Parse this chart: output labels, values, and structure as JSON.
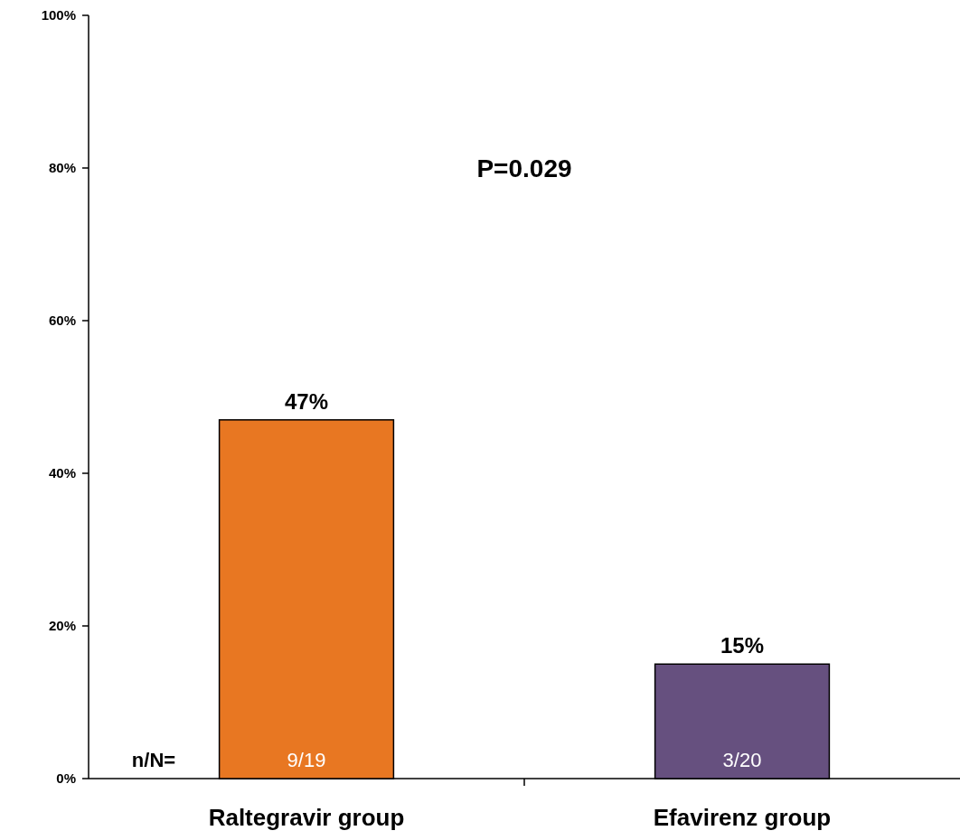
{
  "chart_data": {
    "type": "bar",
    "categories": [
      "Raltegravir group",
      "Efavirenz group"
    ],
    "values": [
      47,
      15
    ],
    "colors": [
      "#e87722",
      "#66507f"
    ],
    "value_labels": [
      "47%",
      "15%"
    ],
    "ylim": [
      0,
      100
    ],
    "yticks": [
      {
        "value": 0,
        "label": "0%"
      },
      {
        "value": 20,
        "label": "20%"
      },
      {
        "value": 40,
        "label": "40%"
      },
      {
        "value": 60,
        "label": "60%"
      },
      {
        "value": 80,
        "label": "80%"
      },
      {
        "value": 100,
        "label": "100%"
      }
    ],
    "annotations": [
      "P=0.029",
      "n/N=",
      "9/19",
      "3/20"
    ]
  }
}
